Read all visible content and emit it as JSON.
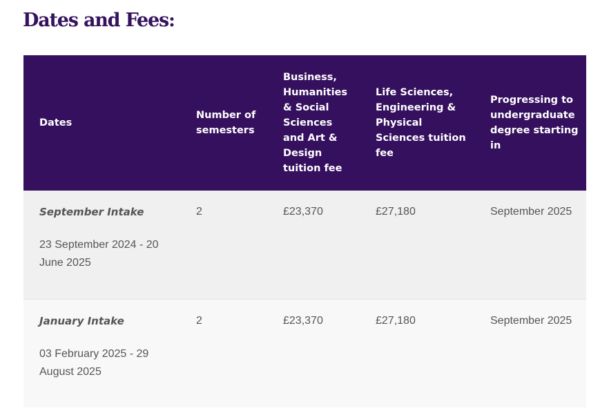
{
  "page": {
    "title": "Dates and Fees:"
  },
  "table": {
    "headers": [
      "Dates",
      "Number of semesters",
      "Business, Humanities & Social Sciences and Art & Design tuition fee",
      "Life Sciences, Engineering & Physical Sciences tuition fee",
      "Progressing to undergraduate degree starting in"
    ],
    "rows": [
      {
        "intake": "September Intake",
        "dates": "23 September 2024 - 20 June 2025",
        "semesters": "2",
        "fee_bhss": "£23,370",
        "fee_lseps": "£27,180",
        "progression": "September 2025"
      },
      {
        "intake": "January Intake",
        "dates": "03 February 2025 - 29 August 2025",
        "semesters": "2",
        "fee_bhss": "£23,370",
        "fee_lseps": "£27,180",
        "progression": "September 2025"
      }
    ]
  },
  "colors": {
    "title": "#35135e",
    "header_bg": "#35105e",
    "row_a_bg": "#f0f0f0",
    "row_b_bg": "#f8f8f8"
  }
}
